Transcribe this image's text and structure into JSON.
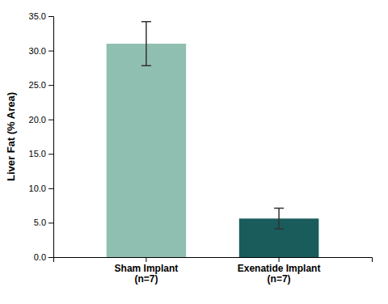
{
  "chart_data": {
    "type": "bar",
    "categories": [
      "Sham Implant\n(n=7)",
      "Exenatide Implant\n(n=7)"
    ],
    "values": [
      31.0,
      5.6
    ],
    "errors": [
      3.2,
      1.5
    ],
    "colors": [
      "#8fbfb0",
      "#1a5c5c"
    ],
    "ylabel": "Liver Fat (% Area)",
    "ylim": [
      0,
      35.0
    ],
    "yticks": [
      {
        "value": 0.0,
        "label": "0.0"
      },
      {
        "value": 5.0,
        "label": "5.0"
      },
      {
        "value": 10.0,
        "label": "10.0"
      },
      {
        "value": 15.0,
        "label": "15.0"
      },
      {
        "value": 20.0,
        "label": "20.0"
      },
      {
        "value": 25.0,
        "label": "25.0"
      },
      {
        "value": 30.0,
        "label": "30.0"
      },
      {
        "value": 35.0,
        "label": "35.0"
      }
    ],
    "grid": false
  }
}
